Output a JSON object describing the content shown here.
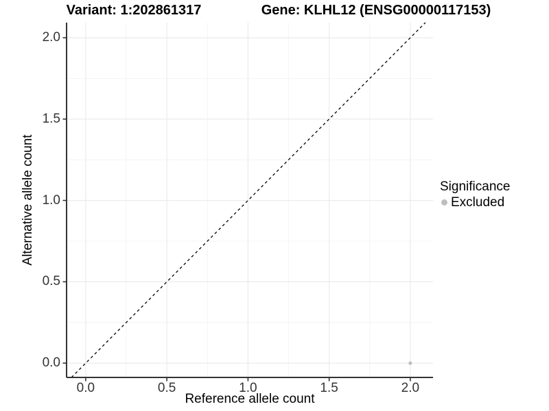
{
  "header": {
    "variant_title": "Variant: 1:202861317",
    "gene_title": "Gene: KLHL12 (ENSG00000117153)"
  },
  "legend": {
    "title": "Significance",
    "items": [
      {
        "label": "Excluded",
        "color": "#bebebe"
      }
    ]
  },
  "colors": {
    "axis_line": "#333333",
    "tick_mark": "#333333",
    "tick_label": "#333333",
    "grid_major": "#ebebeb",
    "grid_minor": "#f4f4f4",
    "reference_line": "#000000",
    "excluded_point": "#bebebe",
    "background": "#ffffff"
  },
  "chart_data": {
    "type": "scatter",
    "title": "Variant: 1:202861317  |  Gene: KLHL12 (ENSG00000117153)",
    "xlabel": "Reference allele count",
    "ylabel": "Alternative allele count",
    "xlim": [
      -0.118,
      2.14
    ],
    "ylim": [
      -0.088,
      2.093
    ],
    "xticks": [
      0.0,
      0.5,
      1.0,
      1.5,
      2.0
    ],
    "yticks": [
      0.0,
      0.5,
      1.0,
      1.5,
      2.0
    ],
    "xtick_labels": [
      "0.0",
      "0.5",
      "1.0",
      "1.5",
      "2.0"
    ],
    "ytick_labels": [
      "0.0",
      "0.5",
      "1.0",
      "1.5",
      "2.0"
    ],
    "x_minor_ticks": [
      0.25,
      0.75,
      1.25,
      1.75
    ],
    "y_minor_ticks": [
      0.25,
      0.75,
      1.25,
      1.75
    ],
    "grid": true,
    "legend_position": "right",
    "series": [
      {
        "name": "Excluded",
        "color": "#bebebe",
        "point_radius": 2.6,
        "points": [
          {
            "x": 2.0,
            "y": 0.0
          }
        ]
      }
    ],
    "reference_line": {
      "type": "identity",
      "equation": "y = x",
      "style": "dashed",
      "color": "#000000"
    }
  }
}
